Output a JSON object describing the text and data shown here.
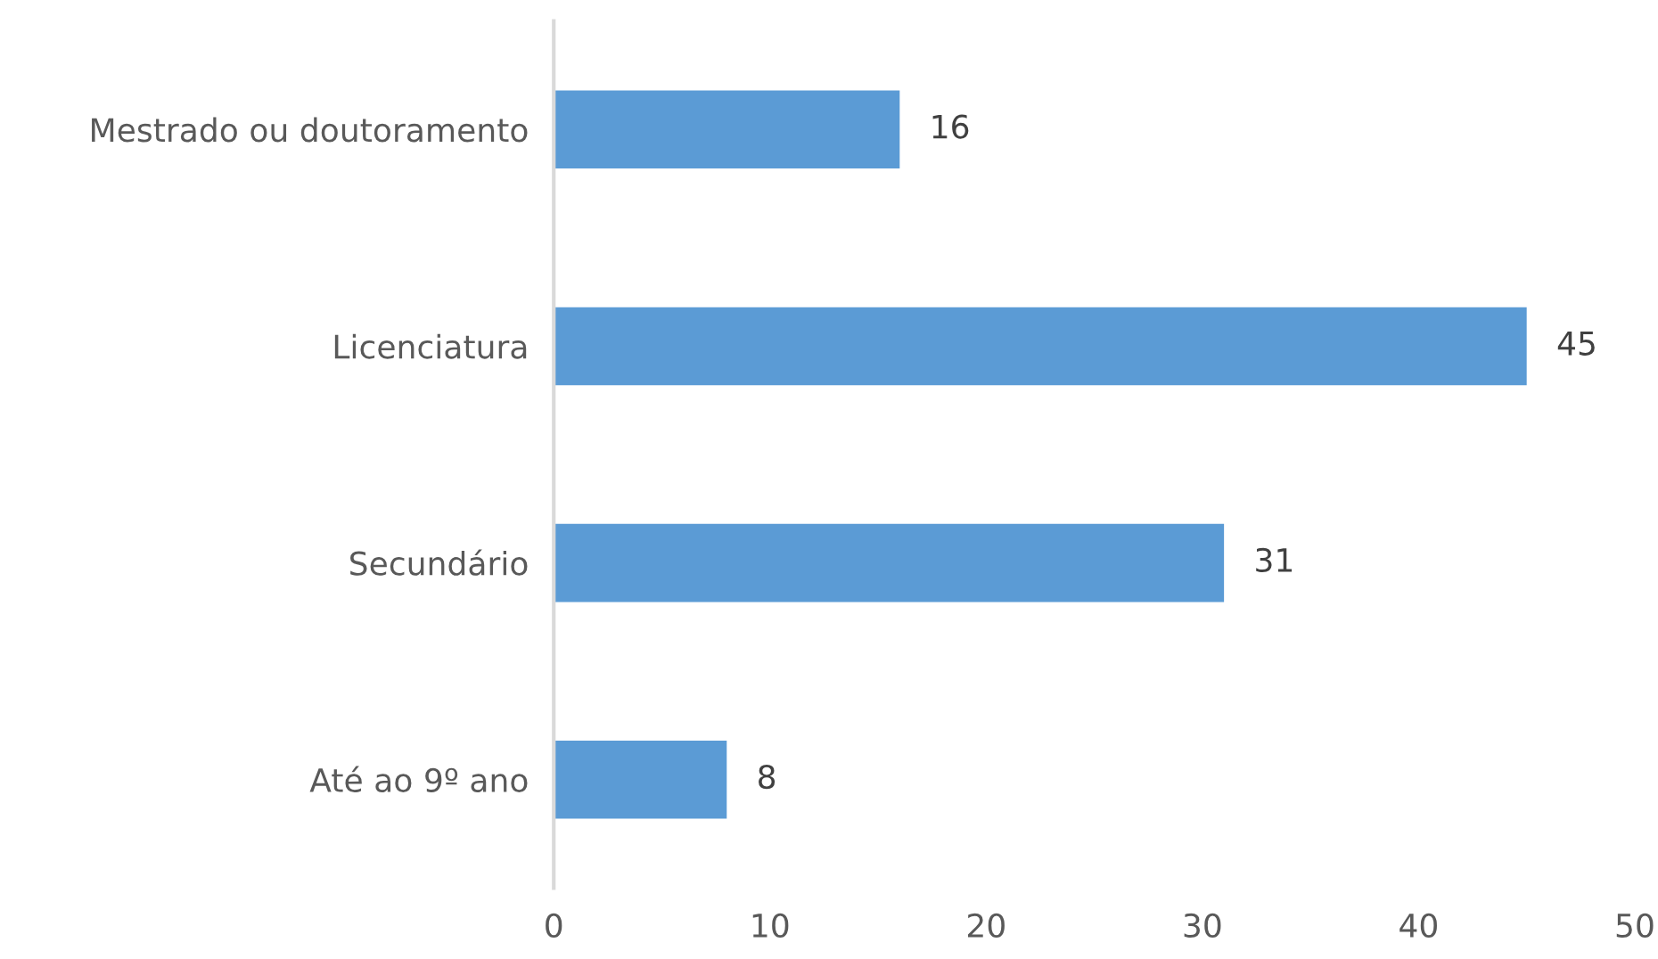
{
  "chart_data": {
    "type": "bar",
    "orientation": "horizontal",
    "categories": [
      "Mestrado ou doutoramento",
      "Licenciatura",
      "Secundário",
      "Até ao 9º ano"
    ],
    "values": [
      16,
      45,
      31,
      8
    ],
    "color": "#5b9bd5",
    "xlim": [
      0,
      50
    ],
    "xticks": [
      0,
      10,
      20,
      30,
      40,
      50
    ],
    "grid": false,
    "legend": false,
    "data_labels": true
  }
}
